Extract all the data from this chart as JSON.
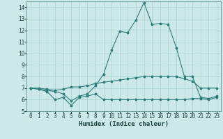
{
  "xlabel": "Humidex (Indice chaleur)",
  "x": [
    0,
    1,
    2,
    3,
    4,
    5,
    6,
    7,
    8,
    9,
    10,
    11,
    12,
    13,
    14,
    15,
    16,
    17,
    18,
    19,
    20,
    21,
    22,
    23
  ],
  "line1": [
    7.0,
    6.9,
    6.7,
    6.0,
    6.2,
    5.5,
    6.2,
    6.3,
    6.5,
    6.0,
    6.0,
    6.0,
    6.0,
    6.0,
    6.0,
    6.0,
    6.0,
    6.0,
    6.0,
    6.0,
    6.1,
    6.1,
    6.0,
    6.2
  ],
  "line2": [
    7.0,
    7.0,
    6.9,
    6.8,
    6.9,
    7.1,
    7.1,
    7.2,
    7.4,
    7.5,
    7.6,
    7.7,
    7.8,
    7.9,
    8.0,
    8.0,
    8.0,
    8.0,
    8.0,
    7.8,
    7.6,
    7.0,
    7.0,
    7.0
  ],
  "line3": [
    7.0,
    6.9,
    6.8,
    6.7,
    6.5,
    5.9,
    6.3,
    6.5,
    7.2,
    8.2,
    10.3,
    11.9,
    11.8,
    12.9,
    14.4,
    12.5,
    12.6,
    12.5,
    10.5,
    8.0,
    8.0,
    6.2,
    6.1,
    6.3
  ],
  "line_color": "#2e7d7d",
  "bg_color": "#cce8e8",
  "grid_color": "#aed4d4",
  "ylim": [
    5,
    14.5
  ],
  "xlim": [
    -0.5,
    23.5
  ],
  "yticks": [
    5,
    6,
    7,
    8,
    9,
    10,
    11,
    12,
    13,
    14
  ],
  "xticks": [
    0,
    1,
    2,
    3,
    4,
    5,
    6,
    7,
    8,
    9,
    10,
    11,
    12,
    13,
    14,
    15,
    16,
    17,
    18,
    19,
    20,
    21,
    22,
    23
  ]
}
